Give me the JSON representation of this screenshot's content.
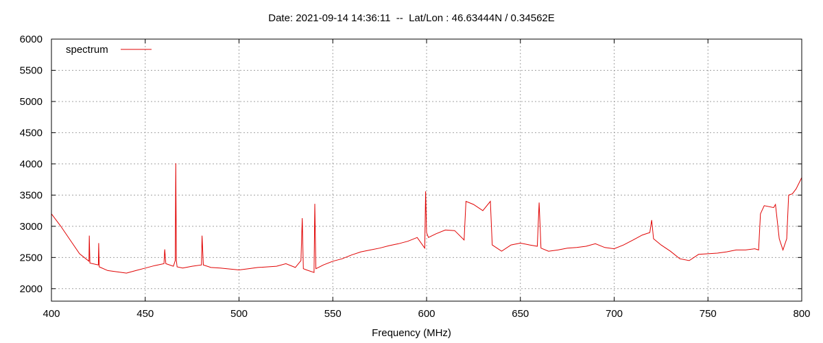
{
  "chart_data": {
    "type": "line",
    "title": "Date: 2021-09-14 14:36:11  --  Lat/Lon : 46.63444N / 0.34562E",
    "xlabel": "Frequency (MHz)",
    "ylabel": "",
    "xlim": [
      400,
      800
    ],
    "ylim": [
      1800,
      6000
    ],
    "xticks": [
      400,
      450,
      500,
      550,
      600,
      650,
      700,
      750,
      800
    ],
    "yticks": [
      2000,
      2500,
      3000,
      3500,
      4000,
      4500,
      5000,
      5500,
      6000
    ],
    "grid": true,
    "legend_position": "top-left",
    "series": [
      {
        "name": "spectrum",
        "color": "#e00000",
        "x": [
          400,
          405,
          410,
          415,
          420,
          420.2,
          420.5,
          425,
          425.2,
          425.5,
          430,
          435,
          440,
          445,
          450,
          455,
          460,
          460.4,
          461,
          465,
          466,
          466.3,
          466.6,
          467,
          470,
          475,
          480,
          480.3,
          481,
          485,
          490,
          500,
          505,
          510,
          520,
          525,
          530,
          533,
          533.7,
          534.3,
          536,
          540,
          540.4,
          541,
          545,
          550,
          555,
          560,
          565,
          570,
          575,
          580,
          585,
          590,
          595,
          599,
          599.5,
          600,
          601,
          605,
          610,
          615,
          620,
          621,
          625,
          630,
          634,
          635,
          640,
          645,
          650,
          655,
          659,
          660,
          661,
          665,
          670,
          675,
          680,
          685,
          690,
          695,
          700,
          705,
          710,
          715,
          719,
          720,
          721,
          725,
          730,
          735,
          740,
          745,
          750,
          755,
          760,
          765,
          770,
          775,
          777,
          778,
          780,
          785,
          786,
          788,
          790,
          792,
          793,
          795,
          797,
          800
        ],
        "values": [
          3200,
          3000,
          2780,
          2560,
          2440,
          2850,
          2410,
          2380,
          2730,
          2350,
          2290,
          2270,
          2250,
          2290,
          2330,
          2370,
          2400,
          2630,
          2400,
          2360,
          2450,
          4010,
          2450,
          2350,
          2330,
          2360,
          2380,
          2850,
          2380,
          2340,
          2330,
          2300,
          2320,
          2340,
          2360,
          2400,
          2340,
          2450,
          3130,
          2320,
          2300,
          2260,
          3360,
          2320,
          2380,
          2440,
          2480,
          2540,
          2590,
          2620,
          2650,
          2690,
          2720,
          2760,
          2820,
          2650,
          3560,
          2900,
          2820,
          2880,
          2940,
          2930,
          2780,
          3400,
          3350,
          3250,
          3400,
          2700,
          2600,
          2700,
          2730,
          2700,
          2680,
          3380,
          2650,
          2600,
          2620,
          2650,
          2660,
          2680,
          2720,
          2660,
          2640,
          2700,
          2780,
          2860,
          2900,
          3100,
          2800,
          2700,
          2600,
          2480,
          2450,
          2550,
          2560,
          2570,
          2590,
          2620,
          2620,
          2640,
          2620,
          3200,
          3330,
          3300,
          3350,
          2800,
          2620,
          2800,
          3500,
          3520,
          3600,
          3780
        ]
      }
    ]
  }
}
